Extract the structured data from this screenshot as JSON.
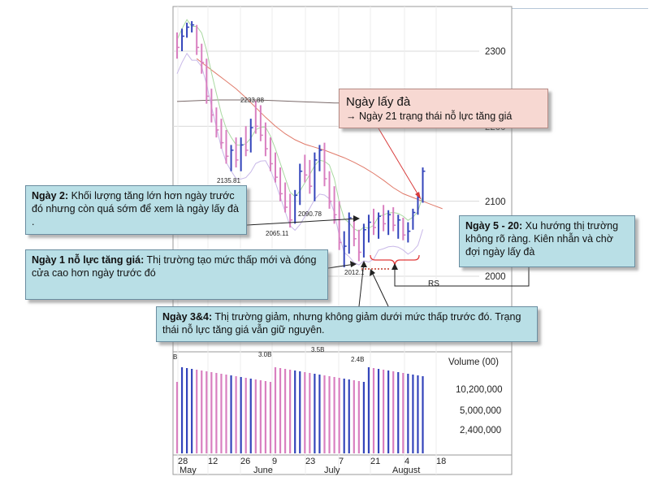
{
  "callouts": {
    "main_title": "Ngày lấy đà",
    "main_body": "→ Ngày 21 trạng thái nỗ lực tăng giá",
    "day2_title": "Ngày 2:",
    "day2_body": " Khối lượng tăng lớn hơn ngày trước đó nhưng còn quá sớm để xem là ngày lấy đà .",
    "day1_title": "Ngày 1 nỗ lực tăng giá:",
    "day1_body": " Thị trường tạo mức thấp mới và đóng cửa cao hơn ngày trước đó",
    "day34_title": "Ngày 3&4:",
    "day34_body": " Thị trường giảm,  nhưng không giảm dưới mức thấp trước đó. Trạng thái nỗ lực tăng giá vẫn giữ nguyên.",
    "day520_title": "Ngày 5 - 20:",
    "day520_body": " Xu hướng thị trường không rõ ràng. Kiên nhẫn và chờ đợi ngày lấy đà"
  },
  "colors": {
    "up_bar": "#3344bb",
    "down_bar": "#d97fc0",
    "ma_short": "#e07a6a",
    "ma_long": "#7a6a6a",
    "ma_green": "#a8d8a0",
    "ma_lilac": "#c8b8e8",
    "bracket": "#e03a3a",
    "arrow": "#222222",
    "grid": "#d9d9d9"
  },
  "chart_data": {
    "type": "bar",
    "price_axis": {
      "ticks": [
        "2300",
        "2200",
        "2100",
        "2000"
      ],
      "ylim": [
        1960,
        2380
      ]
    },
    "volume_axis": {
      "label": "Volume (00)",
      "ticks": [
        "10,200,000",
        "5,000,000",
        "2,400,000"
      ]
    },
    "x_day_labels": [
      "28",
      "12",
      "26",
      "9",
      "23",
      "7",
      "21",
      "4",
      "18"
    ],
    "x_month_labels": [
      "May",
      "June",
      "July",
      "August"
    ],
    "price_annotations": [
      "2233.88",
      "2135.81",
      "2090.78",
      "2065.11",
      "2012.1"
    ],
    "volume_annotations": [
      "B",
      "3.0B",
      "3.5B",
      "2.4B"
    ],
    "rs_label": "RS",
    "ohlc": [
      {
        "h": 2325,
        "l": 2290,
        "c": 2305,
        "up": false
      },
      {
        "h": 2330,
        "l": 2300,
        "c": 2320,
        "up": true
      },
      {
        "h": 2338,
        "l": 2318,
        "c": 2332,
        "up": true
      },
      {
        "h": 2340,
        "l": 2325,
        "c": 2335,
        "up": true
      },
      {
        "h": 2335,
        "l": 2295,
        "c": 2305,
        "up": false
      },
      {
        "h": 2310,
        "l": 2270,
        "c": 2285,
        "up": false
      },
      {
        "h": 2290,
        "l": 2230,
        "c": 2240,
        "up": false
      },
      {
        "h": 2250,
        "l": 2205,
        "c": 2215,
        "up": false
      },
      {
        "h": 2225,
        "l": 2185,
        "c": 2195,
        "up": false
      },
      {
        "h": 2210,
        "l": 2170,
        "c": 2178,
        "up": false
      },
      {
        "h": 2195,
        "l": 2150,
        "c": 2160,
        "up": false
      },
      {
        "h": 2175,
        "l": 2140,
        "c": 2168,
        "up": true
      },
      {
        "h": 2185,
        "l": 2145,
        "c": 2155,
        "up": false
      },
      {
        "h": 2185,
        "l": 2140,
        "c": 2175,
        "up": true
      },
      {
        "h": 2200,
        "l": 2160,
        "c": 2168,
        "up": false
      },
      {
        "h": 2210,
        "l": 2165,
        "c": 2198,
        "up": true
      },
      {
        "h": 2234,
        "l": 2190,
        "c": 2200,
        "up": false
      },
      {
        "h": 2228,
        "l": 2180,
        "c": 2188,
        "up": false
      },
      {
        "h": 2205,
        "l": 2160,
        "c": 2170,
        "up": false
      },
      {
        "h": 2185,
        "l": 2140,
        "c": 2150,
        "up": false
      },
      {
        "h": 2165,
        "l": 2125,
        "c": 2132,
        "up": false
      },
      {
        "h": 2145,
        "l": 2100,
        "c": 2110,
        "up": false
      },
      {
        "h": 2125,
        "l": 2085,
        "c": 2092,
        "up": false
      },
      {
        "h": 2110,
        "l": 2065,
        "c": 2075,
        "up": false
      },
      {
        "h": 2115,
        "l": 2070,
        "c": 2108,
        "up": true
      },
      {
        "h": 2150,
        "l": 2095,
        "c": 2140,
        "up": true
      },
      {
        "h": 2162,
        "l": 2125,
        "c": 2135,
        "up": false
      },
      {
        "h": 2155,
        "l": 2110,
        "c": 2120,
        "up": false
      },
      {
        "h": 2165,
        "l": 2100,
        "c": 2155,
        "up": true
      },
      {
        "h": 2175,
        "l": 2140,
        "c": 2168,
        "up": true
      },
      {
        "h": 2178,
        "l": 2120,
        "c": 2130,
        "up": false
      },
      {
        "h": 2140,
        "l": 2090,
        "c": 2100,
        "up": false
      },
      {
        "h": 2120,
        "l": 2070,
        "c": 2082,
        "up": false
      },
      {
        "h": 2100,
        "l": 2035,
        "c": 2045,
        "up": false
      },
      {
        "h": 2060,
        "l": 2012,
        "c": 2040,
        "up": true
      },
      {
        "h": 2085,
        "l": 2030,
        "c": 2078,
        "up": true
      },
      {
        "h": 2080,
        "l": 2040,
        "c": 2050,
        "up": false
      },
      {
        "h": 2062,
        "l": 2020,
        "c": 2032,
        "up": false
      },
      {
        "h": 2070,
        "l": 2025,
        "c": 2062,
        "up": true
      },
      {
        "h": 2082,
        "l": 2045,
        "c": 2072,
        "up": true
      },
      {
        "h": 2090,
        "l": 2055,
        "c": 2065,
        "up": false
      },
      {
        "h": 2085,
        "l": 2050,
        "c": 2080,
        "up": true
      },
      {
        "h": 2095,
        "l": 2060,
        "c": 2070,
        "up": false
      },
      {
        "h": 2088,
        "l": 2055,
        "c": 2082,
        "up": true
      },
      {
        "h": 2092,
        "l": 2060,
        "c": 2068,
        "up": false
      },
      {
        "h": 2082,
        "l": 2050,
        "c": 2075,
        "up": true
      },
      {
        "h": 2078,
        "l": 2048,
        "c": 2055,
        "up": false
      },
      {
        "h": 2072,
        "l": 2045,
        "c": 2060,
        "up": true
      },
      {
        "h": 2090,
        "l": 2062,
        "c": 2085,
        "up": true
      },
      {
        "h": 2108,
        "l": 2082,
        "c": 2105,
        "up": true
      },
      {
        "h": 2145,
        "l": 2098,
        "c": 2140,
        "up": true
      }
    ],
    "ma_short": [
      2290,
      2280,
      2270,
      2260,
      2250,
      2238,
      2225,
      2212,
      2200,
      2190,
      2182,
      2176,
      2172,
      2168,
      2163,
      2158,
      2152,
      2145,
      2137,
      2128,
      2118,
      2110,
      2105,
      2100,
      2095,
      2090
    ],
    "ma_long": [
      2233,
      2234,
      2235,
      2235,
      2235,
      2234,
      2233,
      2232,
      2231,
      2231,
      2230,
      2230,
      2230
    ]
  }
}
